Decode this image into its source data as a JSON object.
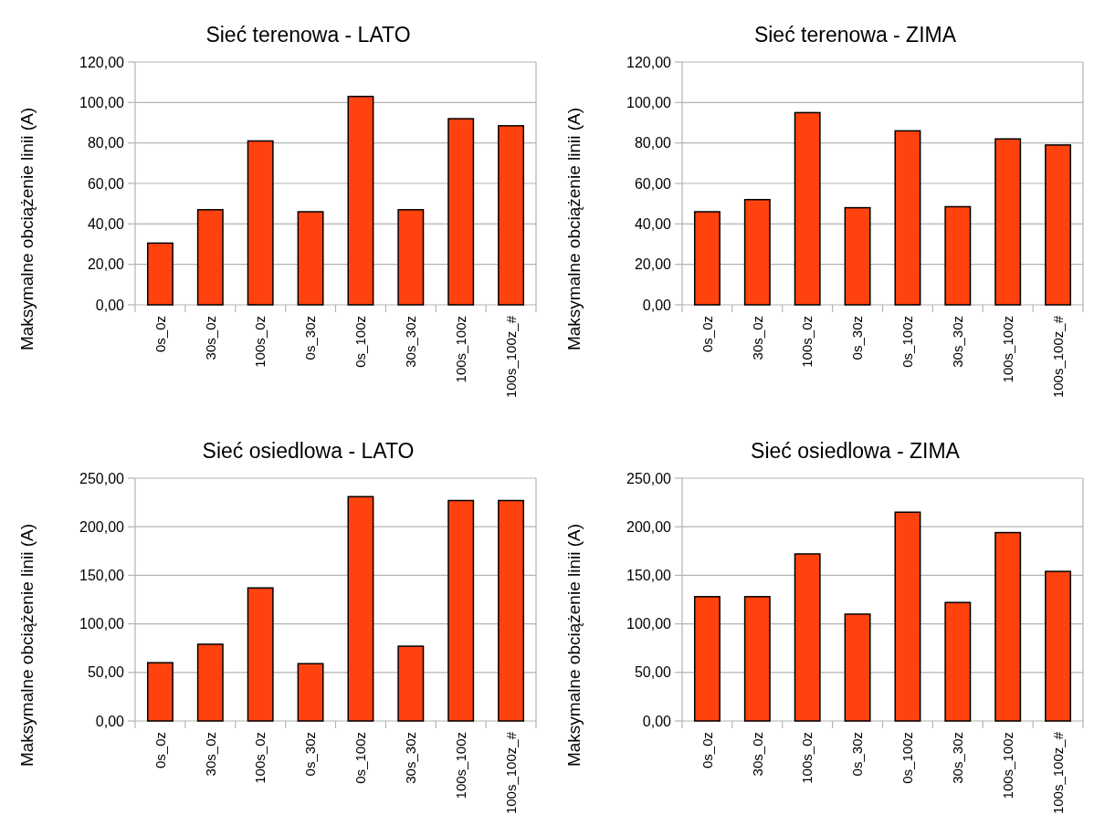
{
  "chart_data": [
    {
      "type": "bar",
      "title": "Sieć terenowa - LATO",
      "ylabel": "Maksymalne obciążenie linii (A)",
      "categories": [
        "0s_0z",
        "30s_0z",
        "100s_0z",
        "0s_30z",
        "0s_100z",
        "30s_30z",
        "100s_100z",
        "100s_100z_#"
      ],
      "values": [
        30.5,
        47,
        81,
        46,
        103,
        47,
        92,
        88.5
      ],
      "color": "#ff420e",
      "ylim": [
        0,
        120
      ],
      "yticks": [
        {
          "value": 0,
          "label": "0,00"
        },
        {
          "value": 20,
          "label": "20,00"
        },
        {
          "value": 40,
          "label": "40,00"
        },
        {
          "value": 60,
          "label": "60,00"
        },
        {
          "value": 80,
          "label": "80,00"
        },
        {
          "value": 100,
          "label": "100,00"
        },
        {
          "value": 120,
          "label": "120,00"
        }
      ],
      "grid": "y"
    },
    {
      "type": "bar",
      "title": "Sieć terenowa - ZIMA",
      "ylabel": "Maksymalne obciążenie linii (A)",
      "categories": [
        "0s_0z",
        "30s_0z",
        "100s_0z",
        "0s_30z",
        "0s_100z",
        "30s_30z",
        "100s_100z",
        "100s_100z_#"
      ],
      "values": [
        46,
        52,
        95,
        48,
        86,
        48.5,
        82,
        79
      ],
      "color": "#ff420e",
      "ylim": [
        0,
        120
      ],
      "yticks": [
        {
          "value": 0,
          "label": "0,00"
        },
        {
          "value": 20,
          "label": "20,00"
        },
        {
          "value": 40,
          "label": "40,00"
        },
        {
          "value": 60,
          "label": "60,00"
        },
        {
          "value": 80,
          "label": "80,00"
        },
        {
          "value": 100,
          "label": "100,00"
        },
        {
          "value": 120,
          "label": "120,00"
        }
      ],
      "grid": "y"
    },
    {
      "type": "bar",
      "title": "Sieć osiedlowa - LATO",
      "ylabel": "Maksymalne obciążenie linii (A)",
      "categories": [
        "0s_0z",
        "30s_0z",
        "100s_0z",
        "0s_30z",
        "0s_100z",
        "30s_30z",
        "100s_100z",
        "100s_100z_#"
      ],
      "values": [
        60,
        79,
        137,
        59,
        231,
        77,
        227,
        227
      ],
      "color": "#ff420e",
      "ylim": [
        0,
        250
      ],
      "yticks": [
        {
          "value": 0,
          "label": "0,00"
        },
        {
          "value": 50,
          "label": "50,00"
        },
        {
          "value": 100,
          "label": "100,00"
        },
        {
          "value": 150,
          "label": "150,00"
        },
        {
          "value": 200,
          "label": "200,00"
        },
        {
          "value": 250,
          "label": "250,00"
        }
      ],
      "grid": "y"
    },
    {
      "type": "bar",
      "title": "Sieć osiedlowa - ZIMA",
      "ylabel": "Maksymalne obciążenie linii (A)",
      "categories": [
        "0s_0z",
        "30s_0z",
        "100s_0z",
        "0s_30z",
        "0s_100z",
        "30s_30z",
        "100s_100z",
        "100s_100z_#"
      ],
      "values": [
        128,
        128,
        172,
        110,
        215,
        122,
        194,
        154
      ],
      "color": "#ff420e",
      "ylim": [
        0,
        250
      ],
      "yticks": [
        {
          "value": 0,
          "label": "0,00"
        },
        {
          "value": 50,
          "label": "50,00"
        },
        {
          "value": 100,
          "label": "100,00"
        },
        {
          "value": 150,
          "label": "150,00"
        },
        {
          "value": 200,
          "label": "200,00"
        },
        {
          "value": 250,
          "label": "250,00"
        }
      ],
      "grid": "y"
    }
  ]
}
